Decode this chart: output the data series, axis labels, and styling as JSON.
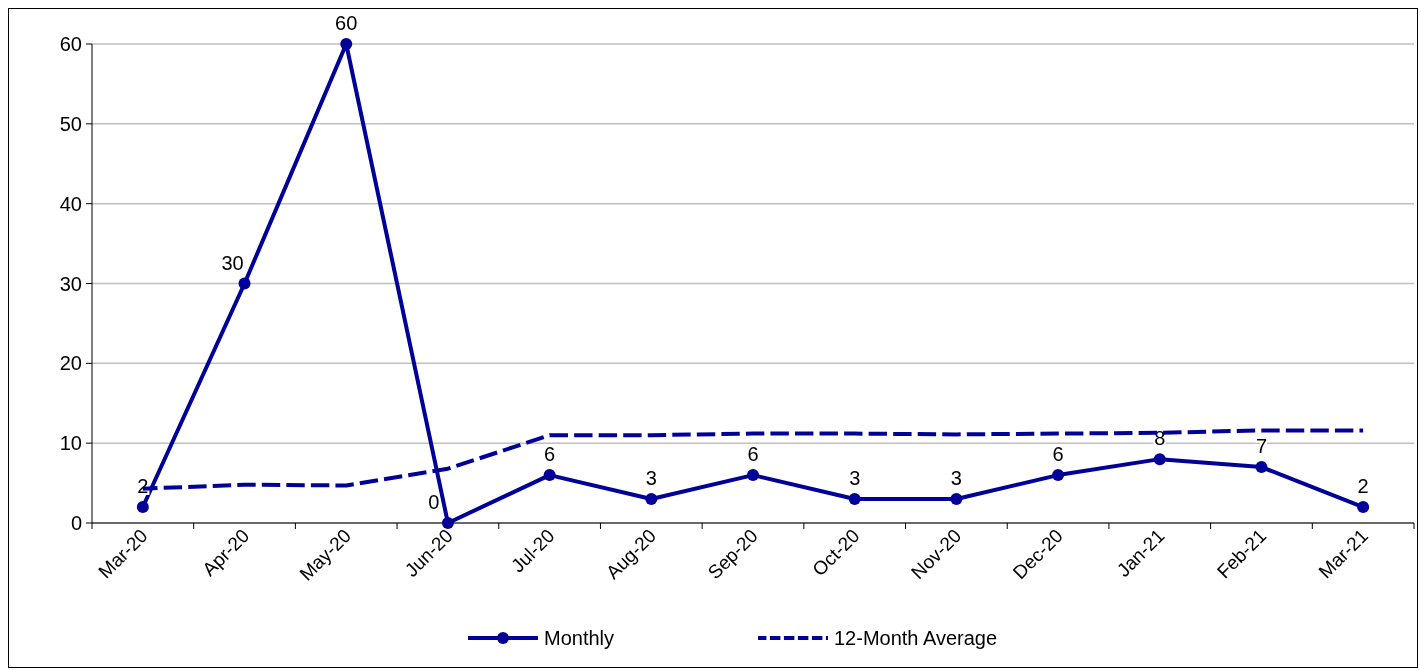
{
  "chart_data": {
    "type": "line",
    "categories": [
      "Mar-20",
      "Apr-20",
      "May-20",
      "Jun-20",
      "Jul-20",
      "Aug-20",
      "Sep-20",
      "Oct-20",
      "Nov-20",
      "Dec-20",
      "Jan-21",
      "Feb-21",
      "Mar-21"
    ],
    "ylim": [
      0,
      60
    ],
    "yticks": [
      0,
      10,
      20,
      30,
      40,
      50,
      60
    ],
    "grid": "y",
    "legend": "bottom",
    "series": [
      {
        "name": "Monthly",
        "color": "#000099",
        "marker": "circle",
        "line_style": "solid",
        "values": [
          2,
          30,
          60,
          0,
          6,
          3,
          6,
          3,
          3,
          6,
          8,
          7,
          2
        ],
        "value_labels": [
          "2",
          "30",
          "60",
          "0",
          "6",
          "3",
          "6",
          "3",
          "3",
          "6",
          "8",
          "7",
          "2"
        ]
      },
      {
        "name": "12-Month Average",
        "color": "#000099",
        "marker": "none",
        "line_style": "dashed",
        "values": [
          4.3,
          4.8,
          4.7,
          6.8,
          11.0,
          11.0,
          11.2,
          11.2,
          11.1,
          11.2,
          11.3,
          11.6,
          11.6
        ]
      }
    ]
  }
}
